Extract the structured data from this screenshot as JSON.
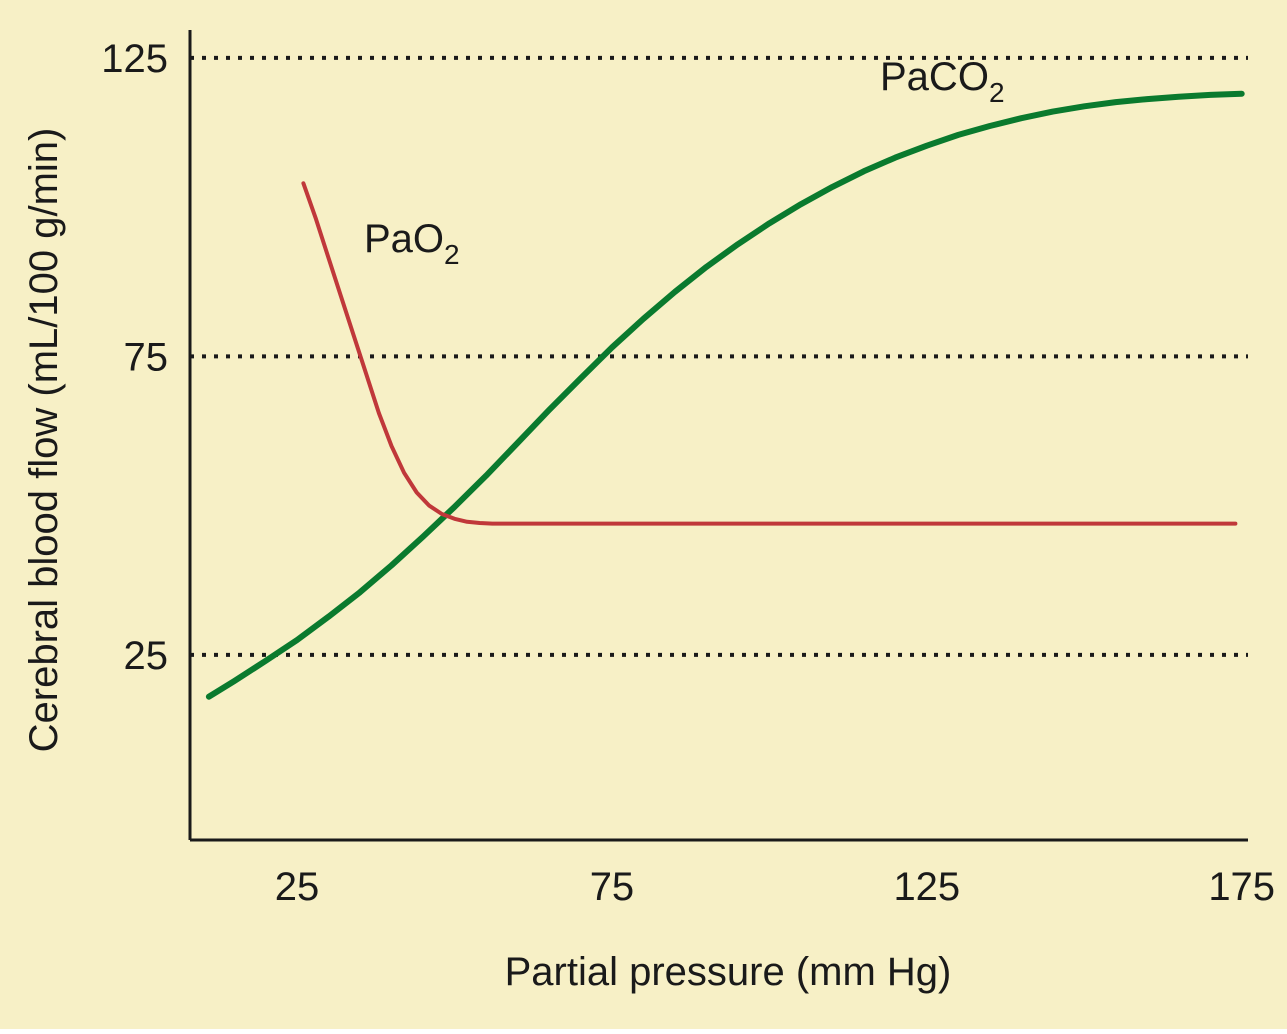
{
  "chart_data": {
    "type": "line",
    "title": "",
    "xlabel": "Partial pressure (mm Hg)",
    "ylabel": "Cerebral blood flow (mL/100 g/min)",
    "xlim": [
      8,
      176
    ],
    "ylim": [
      -6,
      128
    ],
    "x_ticks": [
      "25",
      "75",
      "125",
      "175"
    ],
    "y_ticks": [
      "25",
      "75",
      "125"
    ],
    "grid": "dotted horizontal lines at y ticks",
    "colors": {
      "background": "#f7f0c6",
      "axis": "#1a1a1a",
      "grid": "#1a1a1a",
      "paco2": "#0a7a2e",
      "pao2": "#c0383a"
    },
    "series": [
      {
        "name": "PaCO2",
        "label_main": "PaCO",
        "label_sub": "2",
        "color": "#0a7a2e",
        "x": [
          11,
          15,
          20,
          25,
          30,
          35,
          40,
          45,
          50,
          55,
          60,
          65,
          70,
          75,
          80,
          85,
          90,
          95,
          100,
          105,
          110,
          115,
          120,
          125,
          130,
          135,
          140,
          145,
          150,
          155,
          160,
          165,
          170,
          175
        ],
        "y": [
          18,
          20.6,
          24,
          27.5,
          31.4,
          35.5,
          40,
          44.8,
          49.8,
          55,
          60.5,
          66,
          71.3,
          76.5,
          81.3,
          85.8,
          90,
          93.8,
          97.3,
          100.5,
          103.4,
          106,
          108.3,
          110.3,
          112.1,
          113.6,
          114.9,
          116,
          116.9,
          117.6,
          118.1,
          118.5,
          118.8,
          119
        ]
      },
      {
        "name": "PaO2",
        "label_main": "PaO",
        "label_sub": "2",
        "color": "#c0383a",
        "x": [
          26,
          28,
          30,
          32,
          34,
          36,
          38,
          40,
          42,
          44,
          46,
          48,
          50,
          52,
          54,
          56,
          60,
          70,
          80,
          100,
          125,
          150,
          174
        ],
        "y": [
          104,
          98,
          91.5,
          85,
          78.5,
          72,
          65.5,
          60,
          55.5,
          52.2,
          50,
          48.6,
          47.8,
          47.3,
          47.1,
          47,
          47,
          47,
          47,
          47,
          47,
          47,
          47
        ]
      }
    ]
  }
}
